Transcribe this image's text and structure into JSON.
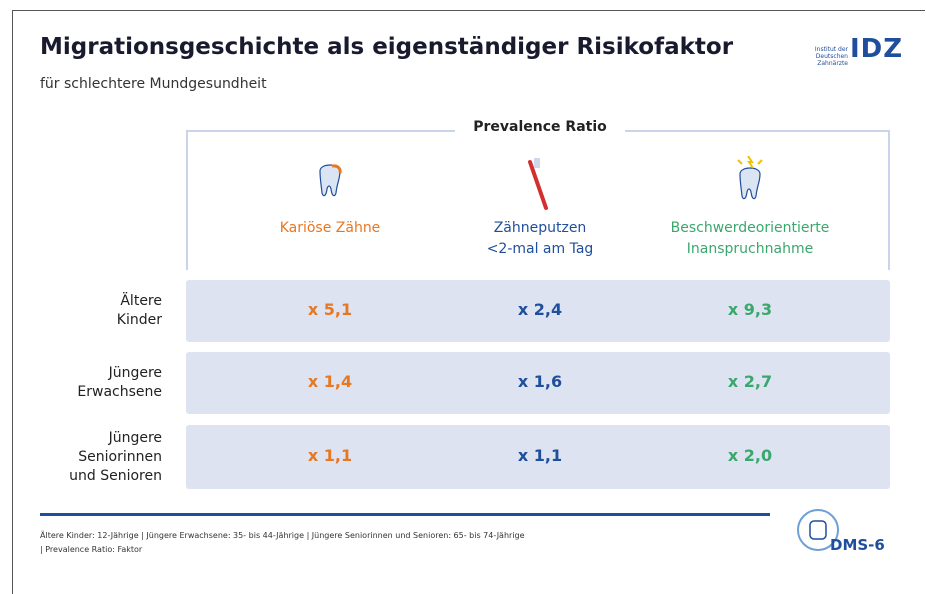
{
  "header": {
    "title": "Migrationsgeschichte als eigenständiger Risikofaktor",
    "subtitle": "für schlechtere Mundgesundheit",
    "logo_text": [
      "Institut der",
      "Deutschen Zahnärzte"
    ],
    "logo_mark": "IDZ"
  },
  "table": {
    "group_header": "Prevalence Ratio",
    "columns": [
      [
        "Kariöse Zähne"
      ],
      [
        "Zähneputzen",
        "<2-mal am Tag"
      ],
      [
        "Beschwerdeorientierte",
        "Inanspruchnahme"
      ]
    ],
    "row_labels": [
      [
        "Ältere",
        "Kinder"
      ],
      [
        "Jüngere",
        "Erwachsene"
      ],
      [
        "Jüngere",
        "Seniorinnen",
        "und Senioren"
      ]
    ],
    "rows": [
      [
        "x 5,1",
        "x 2,4",
        "x 9,3"
      ],
      [
        "x 1,4",
        "x 1,6",
        "x 2,7"
      ],
      [
        "x 1,1",
        "x 1,1",
        "x 2,0"
      ]
    ]
  },
  "footer": {
    "notes": [
      "Ältere Kinder: 12-Jährige | Jüngere Erwachsene: 35- bis 44-Jährige | Jüngere Seniorinnen und Senioren: 65- bis 74-Jährige",
      "| Prevalence Ratio: Faktor"
    ],
    "badge": "DMS-6"
  }
}
